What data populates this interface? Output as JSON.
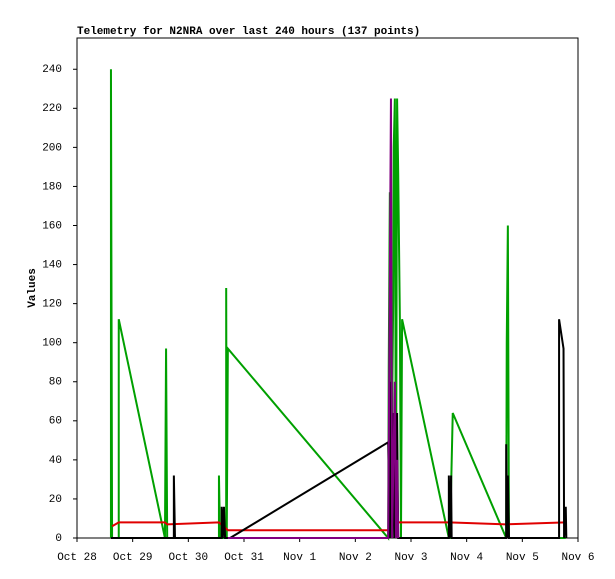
{
  "chart_data": {
    "type": "line",
    "title": "Telemetry for N2NRA over last 240 hours (137 points)",
    "y_label": "Values",
    "xlim": [
      0,
      9
    ],
    "ylim": [
      0,
      256
    ],
    "xticks": [
      {
        "value": 0,
        "label": "Oct 28"
      },
      {
        "value": 1,
        "label": "Oct 29"
      },
      {
        "value": 2,
        "label": "Oct 30"
      },
      {
        "value": 3,
        "label": "Oct 31"
      },
      {
        "value": 4,
        "label": "Nov 1"
      },
      {
        "value": 5,
        "label": "Nov 2"
      },
      {
        "value": 6,
        "label": "Nov 3"
      },
      {
        "value": 7,
        "label": "Nov 4"
      },
      {
        "value": 8,
        "label": "Nov 5"
      },
      {
        "value": 9,
        "label": "Nov 6"
      }
    ],
    "yticks": [
      0,
      20,
      40,
      60,
      80,
      100,
      120,
      140,
      160,
      180,
      200,
      220,
      240
    ],
    "grid": false,
    "series": [
      {
        "color": "#00a000",
        "x": [
          0.61,
          0.61,
          0.63,
          0.75,
          0.75,
          1.58,
          1.6,
          1.62,
          2.55,
          2.55,
          2.57,
          2.68,
          2.68,
          2.69,
          2.71,
          5.59,
          5.6,
          5.62,
          5.64,
          5.68,
          5.69,
          5.71,
          5.73,
          5.75,
          5.77,
          5.8,
          5.82,
          5.84,
          6.68,
          6.7,
          6.75,
          7.71,
          7.72,
          7.74,
          7.76,
          8.78
        ],
        "values": [
          0,
          240,
          0,
          0,
          112,
          0,
          97,
          0,
          0,
          32,
          0,
          0,
          128,
          0,
          97,
          0,
          88,
          177,
          0,
          122,
          200,
          225,
          0,
          225,
          187,
          112,
          0,
          112,
          0,
          0,
          64,
          0,
          100,
          160,
          0,
          0
        ]
      },
      {
        "color": "#e00000",
        "x": [
          0.63,
          0.75,
          1.58,
          1.62,
          2.55,
          2.71,
          5.59,
          5.64,
          6.68,
          7.71,
          8.78
        ],
        "values": [
          6,
          8,
          8,
          7,
          8,
          4,
          4,
          8,
          8,
          7,
          8
        ]
      },
      {
        "color": "#000000",
        "x": [
          0.61,
          1.74,
          1.74,
          1.76,
          2.6,
          2.6,
          2.62,
          2.64,
          2.66,
          2.75,
          5.59,
          5.62,
          5.64,
          5.66,
          5.68,
          5.7,
          5.75,
          5.77,
          6.68,
          6.68,
          6.7,
          6.72,
          6.73,
          7.71,
          7.71,
          7.73,
          7.74,
          7.76,
          8.66,
          8.66,
          8.74,
          8.75,
          8.78,
          8.79
        ],
        "values": [
          0,
          0,
          32,
          0,
          0,
          16,
          0,
          16,
          0,
          0,
          49,
          0,
          80,
          0,
          64,
          0,
          64,
          0,
          0,
          32,
          0,
          32,
          0,
          0,
          48,
          0,
          32,
          0,
          0,
          112,
          97,
          0,
          16,
          0
        ]
      },
      {
        "color": "#800080",
        "x": [
          2.71,
          5.59,
          5.64,
          5.66,
          5.71,
          5.73,
          5.75,
          5.77
        ],
        "values": [
          0,
          0,
          225,
          0,
          80,
          0,
          40,
          0
        ]
      }
    ]
  }
}
